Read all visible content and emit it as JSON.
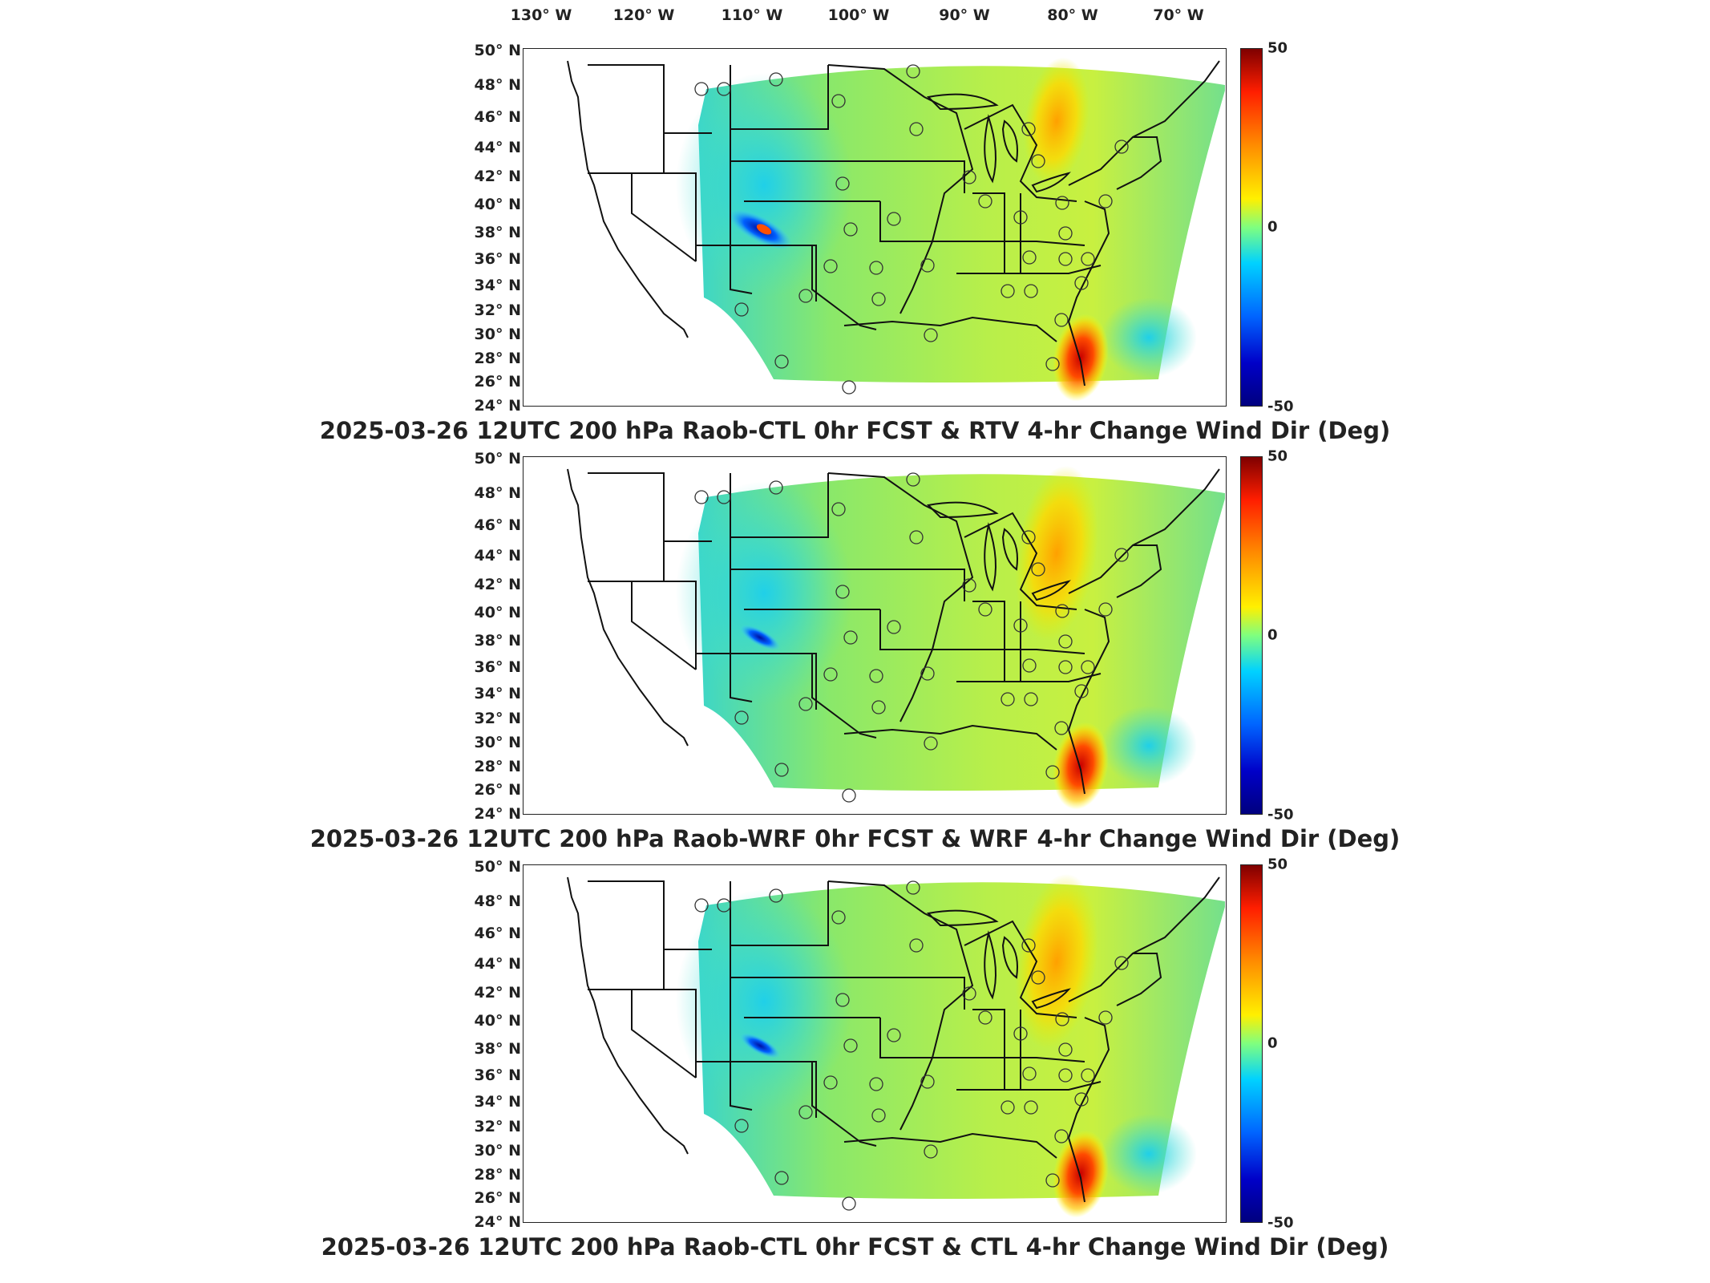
{
  "longitude_labels": [
    "130° W",
    "120° W",
    "110° W",
    "100° W",
    "90° W",
    "80° W",
    "70° W"
  ],
  "latitude_labels": [
    "50° N",
    "48° N",
    "46° N",
    "44° N",
    "42° N",
    "40° N",
    "38° N",
    "36° N",
    "34° N",
    "32° N",
    "30° N",
    "28° N",
    "26° N",
    "24° N"
  ],
  "colorbar": {
    "max_label": "50",
    "mid_label": "0",
    "min_label": "-50",
    "colors": [
      "#7f0000",
      "#ff1e00",
      "#ff8c00",
      "#fff000",
      "#7fff7f",
      "#00d2ff",
      "#0064ff",
      "#0000c8",
      "#00007f"
    ]
  },
  "panels": [
    {
      "title": "2025-03-26 12UTC 200 hPa Raob-CTL 0hr FCST & RTV 4-hr Change Wind Dir (Deg)",
      "field_tone": "yellow-green with strong red patch off Florida"
    },
    {
      "title": "2025-03-26 12UTC 200 hPa Raob-WRF 0hr FCST & WRF 4-hr Change Wind Dir (Deg)",
      "field_tone": "yellow-green with orange band over Great Lakes"
    },
    {
      "title": "2025-03-26 12UTC 200 hPa Raob-CTL 0hr FCST & CTL 4-hr Change Wind Dir (Deg)",
      "field_tone": "yellow-green with orange band over Great Lakes"
    }
  ]
}
